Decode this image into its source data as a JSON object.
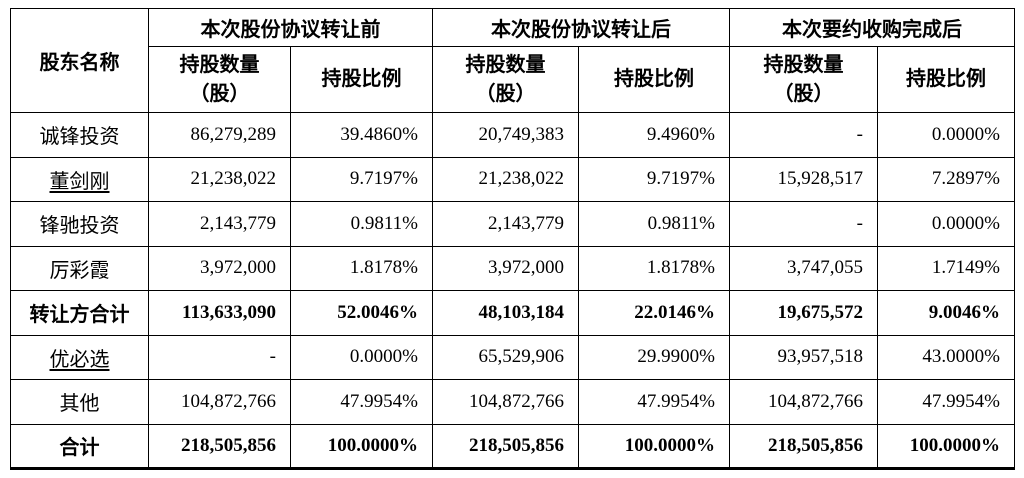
{
  "table": {
    "col_shareholder": "股东名称",
    "groups": [
      {
        "label": "本次股份协议转让前"
      },
      {
        "label": "本次股份协议转让后"
      },
      {
        "label": "本次要约收购完成后"
      }
    ],
    "subheaders": {
      "qty_line1": "持股数量",
      "qty_line2": "（股）",
      "ratio": "持股比例"
    },
    "rows": [
      {
        "name": "诚锋投资",
        "bold": false,
        "underline": false,
        "cells": [
          "86,279,289",
          "39.4860%",
          "20,749,383",
          "9.4960%",
          "-",
          "0.0000%"
        ]
      },
      {
        "name": "董剑刚",
        "bold": false,
        "underline": true,
        "cells": [
          "21,238,022",
          "9.7197%",
          "21,238,022",
          "9.7197%",
          "15,928,517",
          "7.2897%"
        ]
      },
      {
        "name": "锋驰投资",
        "bold": false,
        "underline": false,
        "cells": [
          "2,143,779",
          "0.9811%",
          "2,143,779",
          "0.9811%",
          "-",
          "0.0000%"
        ]
      },
      {
        "name": "厉彩霞",
        "bold": false,
        "underline": false,
        "cells": [
          "3,972,000",
          "1.8178%",
          "3,972,000",
          "1.8178%",
          "3,747,055",
          "1.7149%"
        ]
      },
      {
        "name": "转让方合计",
        "bold": true,
        "underline": false,
        "cells": [
          "113,633,090",
          "52.0046%",
          "48,103,184",
          "22.0146%",
          "19,675,572",
          "9.0046%"
        ]
      },
      {
        "name": "优必选",
        "bold": false,
        "underline": true,
        "cells": [
          "-",
          "0.0000%",
          "65,529,906",
          "29.9900%",
          "93,957,518",
          "43.0000%"
        ]
      },
      {
        "name": "其他",
        "bold": false,
        "underline": false,
        "cells": [
          "104,872,766",
          "47.9954%",
          "104,872,766",
          "47.9954%",
          "104,872,766",
          "47.9954%"
        ]
      },
      {
        "name": "合计",
        "bold": true,
        "underline": false,
        "cells": [
          "218,505,856",
          "100.0000%",
          "218,505,856",
          "100.0000%",
          "218,505,856",
          "100.0000%"
        ]
      }
    ]
  }
}
